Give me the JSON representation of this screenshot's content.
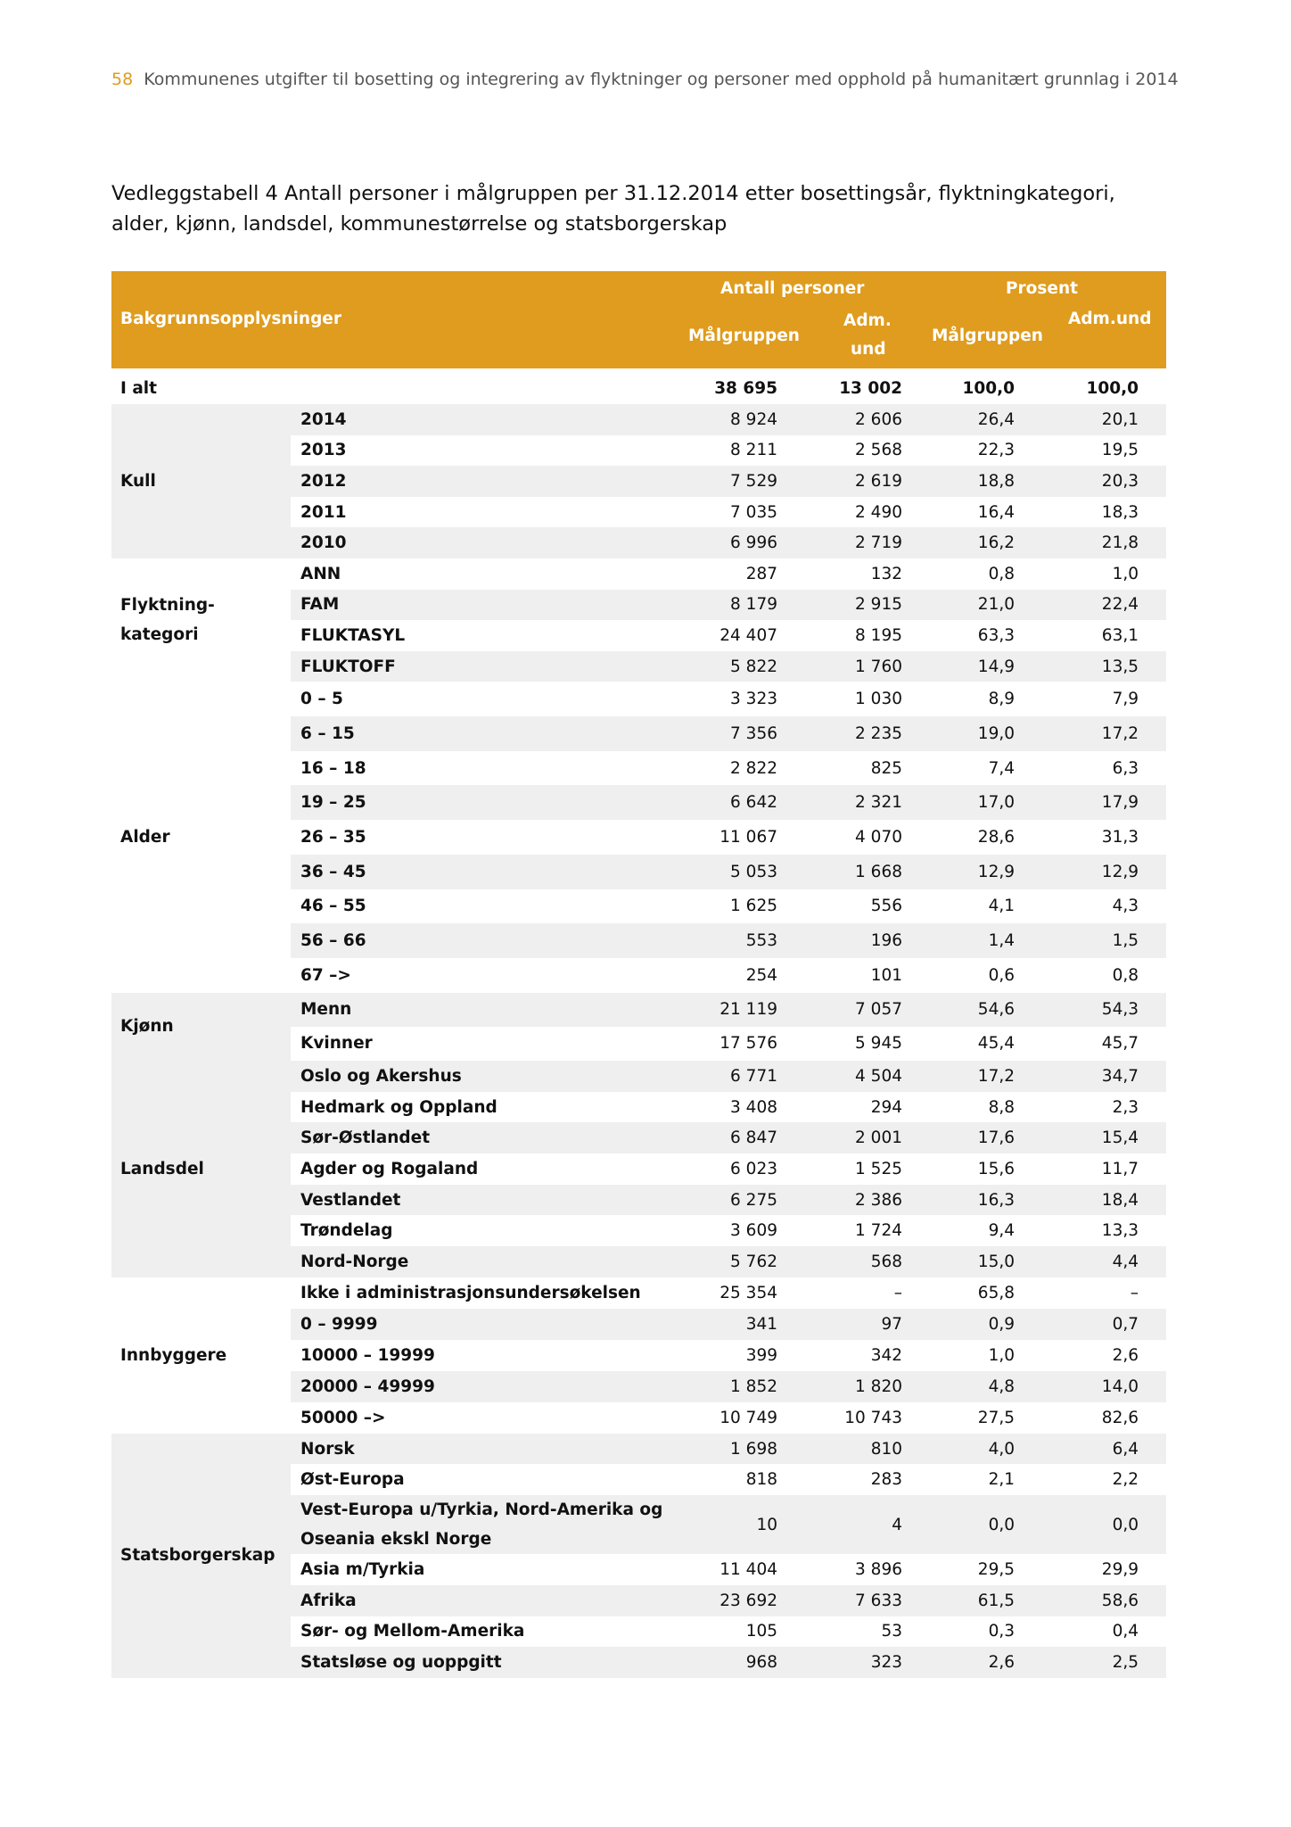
{
  "running_header": {
    "page_number": "58",
    "text": "Kommunenes utgifter til bosetting og integrering av flyktninger og personer med opphold på humanitært grunnlag i 2014"
  },
  "title": "Vedleggstabell 4 Antall personer i målgruppen per 31.12.2014 etter bosettingsår, flyktningkategori, alder, kjønn, landsdel, kommunestørrelse og statsborgerskap",
  "colors": {
    "header_bg": "#df9c1f",
    "row_shade": "#efefef",
    "page_number": "#df9c1f"
  },
  "table": {
    "header": {
      "row_label": "Bakgrunnsopplysninger",
      "group_antall": "Antall personer",
      "group_prosent": "Prosent",
      "col_malgruppen": "Målgruppen",
      "col_adm_und_line1": "Adm.",
      "col_adm_und_line2": "und",
      "col_pct_malgruppen": "Målgruppen",
      "col_pct_adm_und": "Adm.und"
    },
    "total": {
      "label": "I alt",
      "values": [
        "38 695",
        "13 002",
        "100,0",
        "100,0"
      ]
    },
    "groups": [
      {
        "label": "Kull",
        "rows": [
          {
            "label": "2014",
            "values": [
              "8 924",
              "2 606",
              "26,4",
              "20,1"
            ]
          },
          {
            "label": "2013",
            "values": [
              "8 211",
              "2 568",
              "22,3",
              "19,5"
            ]
          },
          {
            "label": "2012",
            "values": [
              "7 529",
              "2 619",
              "18,8",
              "20,3"
            ]
          },
          {
            "label": "2011",
            "values": [
              "7 035",
              "2 490",
              "16,4",
              "18,3"
            ]
          },
          {
            "label": "2010",
            "values": [
              "6 996",
              "2 719",
              "16,2",
              "21,8"
            ]
          }
        ]
      },
      {
        "label": "Flyktning-kategori",
        "rows": [
          {
            "label": "ANN",
            "values": [
              "287",
              "132",
              "0,8",
              "1,0"
            ]
          },
          {
            "label": "FAM",
            "values": [
              "8 179",
              "2 915",
              "21,0",
              "22,4"
            ]
          },
          {
            "label": "FLUKTASYL",
            "values": [
              "24 407",
              "8 195",
              "63,3",
              "63,1"
            ]
          },
          {
            "label": "FLUKTOFF",
            "values": [
              "5 822",
              "1 760",
              "14,9",
              "13,5"
            ]
          }
        ]
      },
      {
        "label": "Alder",
        "rows": [
          {
            "label": "0 – 5",
            "values": [
              "3 323",
              "1 030",
              "8,9",
              "7,9"
            ]
          },
          {
            "label": "6 – 15",
            "values": [
              "7 356",
              "2 235",
              "19,0",
              "17,2"
            ]
          },
          {
            "label": "16 – 18",
            "values": [
              "2 822",
              "825",
              "7,4",
              "6,3"
            ]
          },
          {
            "label": "19 – 25",
            "values": [
              "6 642",
              "2 321",
              "17,0",
              "17,9"
            ]
          },
          {
            "label": "26 – 35",
            "values": [
              "11 067",
              "4 070",
              "28,6",
              "31,3"
            ]
          },
          {
            "label": "36 – 45",
            "values": [
              "5 053",
              "1 668",
              "12,9",
              "12,9"
            ]
          },
          {
            "label": "46 – 55",
            "values": [
              "1 625",
              "556",
              "4,1",
              "4,3"
            ]
          },
          {
            "label": "56 – 66",
            "values": [
              "553",
              "196",
              "1,4",
              "1,5"
            ]
          },
          {
            "label": "67 –>",
            "values": [
              "254",
              "101",
              "0,6",
              "0,8"
            ]
          }
        ]
      },
      {
        "label": "Kjønn",
        "rows": [
          {
            "label": "Menn",
            "values": [
              "21 119",
              "7 057",
              "54,6",
              "54,3"
            ]
          },
          {
            "label": "Kvinner",
            "values": [
              "17 576",
              "5 945",
              "45,4",
              "45,7"
            ]
          }
        ]
      },
      {
        "label": "Landsdel",
        "rows": [
          {
            "label": "Oslo og Akershus",
            "values": [
              "6 771",
              "4 504",
              "17,2",
              "34,7"
            ]
          },
          {
            "label": "Hedmark og Oppland",
            "values": [
              "3 408",
              "294",
              "8,8",
              "2,3"
            ]
          },
          {
            "label": "Sør-Østlandet",
            "values": [
              "6 847",
              "2 001",
              "17,6",
              "15,4"
            ]
          },
          {
            "label": "Agder og Rogaland",
            "values": [
              "6 023",
              "1 525",
              "15,6",
              "11,7"
            ]
          },
          {
            "label": "Vestlandet",
            "values": [
              "6 275",
              "2 386",
              "16,3",
              "18,4"
            ]
          },
          {
            "label": "Trøndelag",
            "values": [
              "3 609",
              "1 724",
              "9,4",
              "13,3"
            ]
          },
          {
            "label": "Nord-Norge",
            "values": [
              "5 762",
              "568",
              "15,0",
              "4,4"
            ]
          }
        ]
      },
      {
        "label": "Innbyggere",
        "rows": [
          {
            "label": "Ikke i administrasjonsundersøkelsen",
            "values": [
              "25 354",
              "–",
              "65,8",
              "–"
            ]
          },
          {
            "label": "0 – 9999",
            "values": [
              "341",
              "97",
              "0,9",
              "0,7"
            ]
          },
          {
            "label": "10000 – 19999",
            "values": [
              "399",
              "342",
              "1,0",
              "2,6"
            ]
          },
          {
            "label": "20000 – 49999",
            "values": [
              "1 852",
              "1 820",
              "4,8",
              "14,0"
            ]
          },
          {
            "label": "50000 –>",
            "values": [
              "10 749",
              "10 743",
              "27,5",
              "82,6"
            ]
          }
        ]
      },
      {
        "label": "Statsborgerskap",
        "rows": [
          {
            "label": "Norsk",
            "values": [
              "1 698",
              "810",
              "4,0",
              "6,4"
            ]
          },
          {
            "label": "Øst-Europa",
            "values": [
              "818",
              "283",
              "2,1",
              "2,2"
            ]
          },
          {
            "label": "Vest-Europa u/Tyrkia, Nord-Amerika og Oseania ekskl Norge",
            "values": [
              "10",
              "4",
              "0,0",
              "0,0"
            ]
          },
          {
            "label": "Asia m/Tyrkia",
            "values": [
              "11 404",
              "3 896",
              "29,5",
              "29,9"
            ]
          },
          {
            "label": "Afrika",
            "values": [
              "23 692",
              "7 633",
              "61,5",
              "58,6"
            ]
          },
          {
            "label": "Sør- og Mellom-Amerika",
            "values": [
              "105",
              "53",
              "0,3",
              "0,4"
            ]
          },
          {
            "label": "Statsløse og uoppgitt",
            "values": [
              "968",
              "323",
              "2,6",
              "2,5"
            ]
          }
        ]
      }
    ]
  }
}
